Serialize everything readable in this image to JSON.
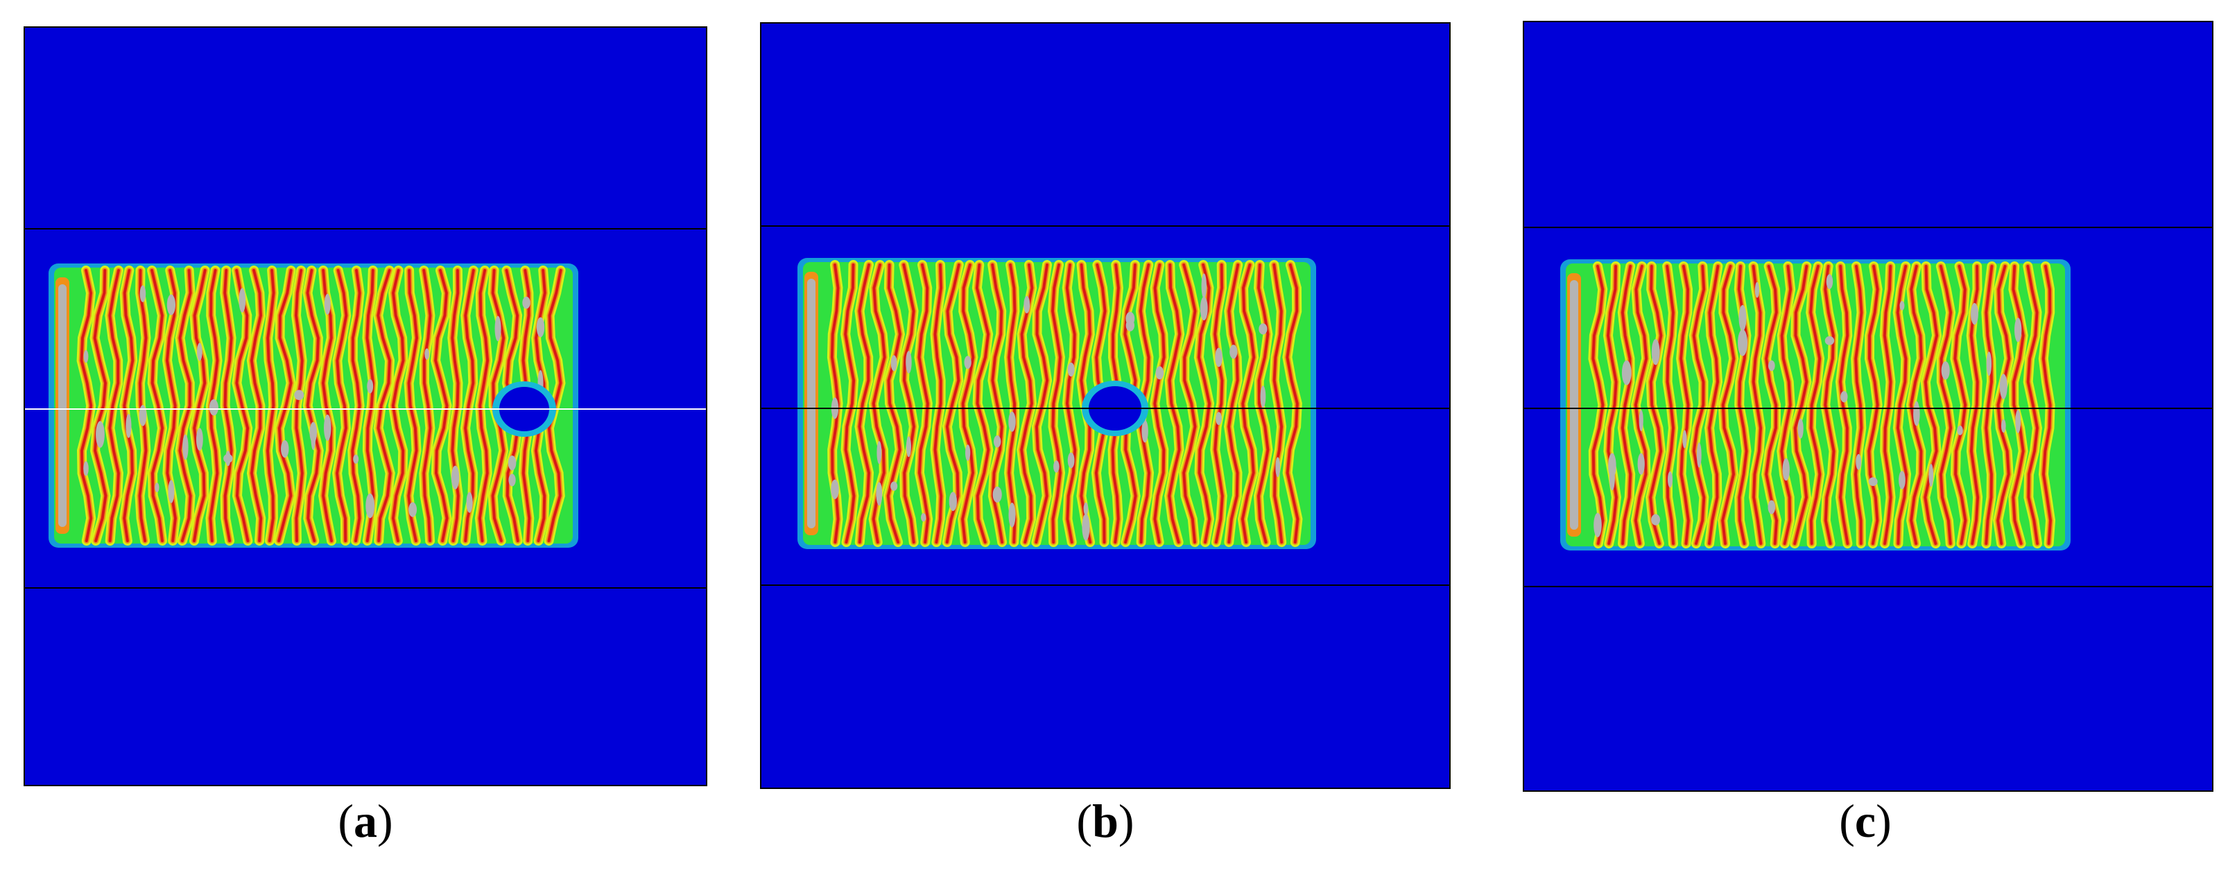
{
  "figure": {
    "panels": [
      {
        "id": "a",
        "caption_letter": "a"
      },
      {
        "id": "b",
        "caption_letter": "b"
      },
      {
        "id": "c",
        "caption_letter": "c"
      }
    ],
    "colors": {
      "background": "#0000d8",
      "cyan": "#18b8d8",
      "green": "#30e040",
      "yellow": "#d8f018",
      "orange": "#f09018",
      "red": "#d81818",
      "gray": "#b4b4b4",
      "line": "#000000"
    }
  }
}
